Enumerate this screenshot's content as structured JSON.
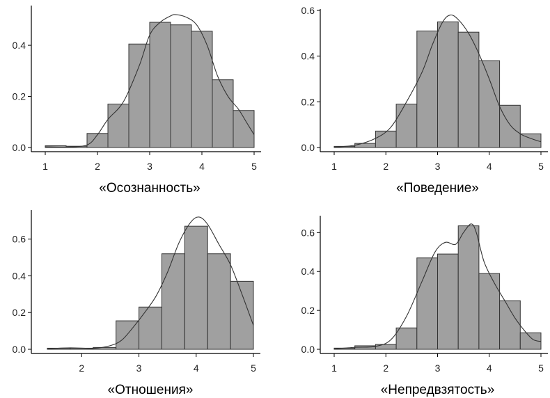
{
  "colors": {
    "bar_fill": "#a0a0a0",
    "bar_stroke": "#333333",
    "axis": "#000000",
    "density_line": "#333333",
    "background": "#ffffff"
  },
  "chart_data": [
    {
      "type": "histogram",
      "xlabel": "«Осознанность»",
      "xlim": [
        1,
        5
      ],
      "ylim": [
        0,
        0.55
      ],
      "xticks": [
        "1",
        "2",
        "3",
        "4",
        "5"
      ],
      "yticks": [
        "0.0",
        "0.2",
        "0.4"
      ],
      "bins": [
        {
          "x0": 1.0,
          "x1": 1.4,
          "y": 0.007
        },
        {
          "x0": 1.4,
          "x1": 1.8,
          "y": 0.005
        },
        {
          "x0": 1.8,
          "x1": 2.2,
          "y": 0.055
        },
        {
          "x0": 2.2,
          "x1": 2.6,
          "y": 0.17
        },
        {
          "x0": 2.6,
          "x1": 3.0,
          "y": 0.405
        },
        {
          "x0": 3.0,
          "x1": 3.4,
          "y": 0.49
        },
        {
          "x0": 3.4,
          "x1": 3.8,
          "y": 0.48
        },
        {
          "x0": 3.8,
          "x1": 4.2,
          "y": 0.455
        },
        {
          "x0": 4.2,
          "x1": 4.6,
          "y": 0.265
        },
        {
          "x0": 4.6,
          "x1": 5.0,
          "y": 0.145
        }
      ],
      "density": {
        "x": [
          1.0,
          1.4,
          1.8,
          2.0,
          2.2,
          2.5,
          2.8,
          3.0,
          3.2,
          3.4,
          3.5,
          3.7,
          3.9,
          4.1,
          4.3,
          4.5,
          4.7,
          4.85,
          5.0
        ],
        "y": [
          0.003,
          0.002,
          0.01,
          0.05,
          0.11,
          0.18,
          0.32,
          0.44,
          0.49,
          0.515,
          0.52,
          0.51,
          0.48,
          0.4,
          0.28,
          0.2,
          0.15,
          0.1,
          0.05
        ]
      }
    },
    {
      "type": "histogram",
      "xlabel": "«Поведение»",
      "xlim": [
        1,
        5
      ],
      "ylim": [
        0,
        0.6
      ],
      "xticks": [
        "1",
        "2",
        "3",
        "4",
        "5"
      ],
      "yticks": [
        "0.0",
        "0.2",
        "0.4",
        "0.6"
      ],
      "bins": [
        {
          "x0": 1.0,
          "x1": 1.4,
          "y": 0.005
        },
        {
          "x0": 1.4,
          "x1": 1.8,
          "y": 0.018
        },
        {
          "x0": 1.8,
          "x1": 2.2,
          "y": 0.072
        },
        {
          "x0": 2.2,
          "x1": 2.6,
          "y": 0.19
        },
        {
          "x0": 2.6,
          "x1": 3.0,
          "y": 0.51
        },
        {
          "x0": 3.0,
          "x1": 3.4,
          "y": 0.55
        },
        {
          "x0": 3.4,
          "x1": 3.8,
          "y": 0.505
        },
        {
          "x0": 3.8,
          "x1": 4.2,
          "y": 0.38
        },
        {
          "x0": 4.2,
          "x1": 4.6,
          "y": 0.185
        },
        {
          "x0": 4.6,
          "x1": 5.0,
          "y": 0.06
        }
      ],
      "density": {
        "x": [
          1.0,
          1.4,
          1.8,
          2.1,
          2.4,
          2.7,
          2.9,
          3.1,
          3.25,
          3.4,
          3.6,
          3.8,
          4.0,
          4.2,
          4.4,
          4.6,
          4.8,
          5.0
        ],
        "y": [
          0.002,
          0.01,
          0.04,
          0.09,
          0.2,
          0.33,
          0.45,
          0.55,
          0.58,
          0.56,
          0.5,
          0.41,
          0.3,
          0.18,
          0.1,
          0.06,
          0.04,
          0.025
        ]
      }
    },
    {
      "type": "histogram",
      "xlabel": "«Отношения»",
      "xlim": [
        1.4,
        5
      ],
      "ylim": [
        0,
        0.75
      ],
      "xticks": [
        "2",
        "3",
        "4",
        "5"
      ],
      "tick_values": [
        2,
        3,
        4,
        5
      ],
      "yticks": [
        "0.0",
        "0.2",
        "0.4",
        "0.6"
      ],
      "bins": [
        {
          "x0": 1.4,
          "x1": 1.8,
          "y": 0.006
        },
        {
          "x0": 1.8,
          "x1": 2.2,
          "y": 0.006
        },
        {
          "x0": 2.2,
          "x1": 2.6,
          "y": 0.01
        },
        {
          "x0": 2.6,
          "x1": 3.0,
          "y": 0.155
        },
        {
          "x0": 3.0,
          "x1": 3.4,
          "y": 0.23
        },
        {
          "x0": 3.4,
          "x1": 3.8,
          "y": 0.52
        },
        {
          "x0": 3.8,
          "x1": 4.2,
          "y": 0.67
        },
        {
          "x0": 4.2,
          "x1": 4.6,
          "y": 0.52
        },
        {
          "x0": 4.6,
          "x1": 5.0,
          "y": 0.37
        }
      ],
      "density": {
        "x": [
          1.4,
          1.8,
          2.2,
          2.5,
          2.7,
          2.9,
          3.1,
          3.3,
          3.5,
          3.7,
          3.9,
          4.05,
          4.2,
          4.4,
          4.6,
          4.8,
          5.0
        ],
        "y": [
          0.003,
          0.008,
          0.005,
          0.02,
          0.05,
          0.12,
          0.2,
          0.29,
          0.42,
          0.58,
          0.69,
          0.72,
          0.68,
          0.57,
          0.46,
          0.3,
          0.13
        ]
      }
    },
    {
      "type": "histogram",
      "xlabel": "«Непредвзятость»",
      "xlim": [
        1,
        5
      ],
      "ylim": [
        0,
        0.68
      ],
      "xticks": [
        "1",
        "2",
        "3",
        "4",
        "5"
      ],
      "yticks": [
        "0.0",
        "0.2",
        "0.4",
        "0.6"
      ],
      "bins": [
        {
          "x0": 1.0,
          "x1": 1.4,
          "y": 0.006
        },
        {
          "x0": 1.4,
          "x1": 1.8,
          "y": 0.018
        },
        {
          "x0": 1.8,
          "x1": 2.2,
          "y": 0.025
        },
        {
          "x0": 2.2,
          "x1": 2.6,
          "y": 0.11
        },
        {
          "x0": 2.6,
          "x1": 3.0,
          "y": 0.47
        },
        {
          "x0": 3.0,
          "x1": 3.4,
          "y": 0.49
        },
        {
          "x0": 3.4,
          "x1": 3.8,
          "y": 0.635
        },
        {
          "x0": 3.8,
          "x1": 4.2,
          "y": 0.39
        },
        {
          "x0": 4.2,
          "x1": 4.6,
          "y": 0.25
        },
        {
          "x0": 4.6,
          "x1": 5.0,
          "y": 0.085
        }
      ],
      "density": {
        "x": [
          1.0,
          1.4,
          1.8,
          2.1,
          2.4,
          2.7,
          2.95,
          3.15,
          3.35,
          3.5,
          3.65,
          3.75,
          3.9,
          4.1,
          4.3,
          4.5,
          4.7,
          4.85,
          5.0
        ],
        "y": [
          0.002,
          0.01,
          0.015,
          0.05,
          0.17,
          0.35,
          0.5,
          0.55,
          0.54,
          0.6,
          0.645,
          0.6,
          0.45,
          0.34,
          0.25,
          0.16,
          0.09,
          0.05,
          0.04
        ]
      }
    }
  ]
}
